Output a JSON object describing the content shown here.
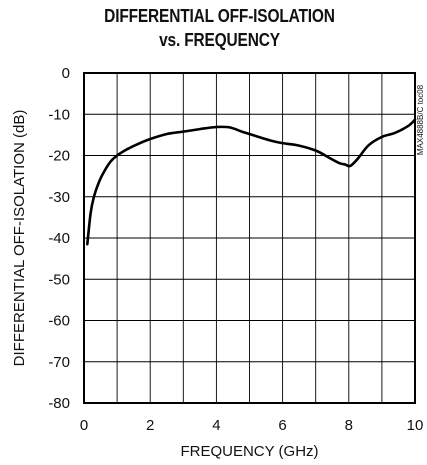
{
  "title_line1": "DIFFERENTIAL OFF-ISOLATION",
  "title_line2": "vs. FREQUENCY",
  "side_code": "MAX4888B/C toc08",
  "chart_data": {
    "type": "line",
    "title": "DIFFERENTIAL OFF-ISOLATION vs. FREQUENCY",
    "xlabel": "FREQUENCY (GHz)",
    "ylabel": "DIFFERENTIAL OFF-ISOLATION (dB)",
    "xlim": [
      0,
      10
    ],
    "ylim": [
      -80,
      0
    ],
    "xticks": [
      0,
      2,
      4,
      6,
      8,
      10
    ],
    "yticks": [
      0,
      -10,
      -20,
      -30,
      -40,
      -50,
      -60,
      -70,
      -80
    ],
    "grid": true,
    "series": [
      {
        "color": "#000000",
        "x": [
          0.1,
          0.2,
          0.3,
          0.45,
          0.6,
          0.8,
          1.0,
          1.3,
          1.6,
          2.0,
          2.5,
          3.0,
          3.5,
          4.0,
          4.4,
          4.8,
          5.2,
          5.6,
          6.0,
          6.5,
          7.0,
          7.4,
          7.7,
          7.9,
          8.0,
          8.1,
          8.3,
          8.6,
          9.0,
          9.4,
          9.8,
          10.0
        ],
        "y": [
          -41.5,
          -34,
          -30,
          -26.5,
          -24,
          -21.5,
          -20,
          -18.5,
          -17.3,
          -16.0,
          -14.8,
          -14.2,
          -13.6,
          -13.1,
          -13.2,
          -14.3,
          -15.3,
          -16.3,
          -17.0,
          -17.6,
          -18.8,
          -20.5,
          -21.8,
          -22.2,
          -22.6,
          -22.2,
          -20.5,
          -17.5,
          -15.5,
          -14.5,
          -12.8,
          -11.3
        ]
      }
    ]
  }
}
